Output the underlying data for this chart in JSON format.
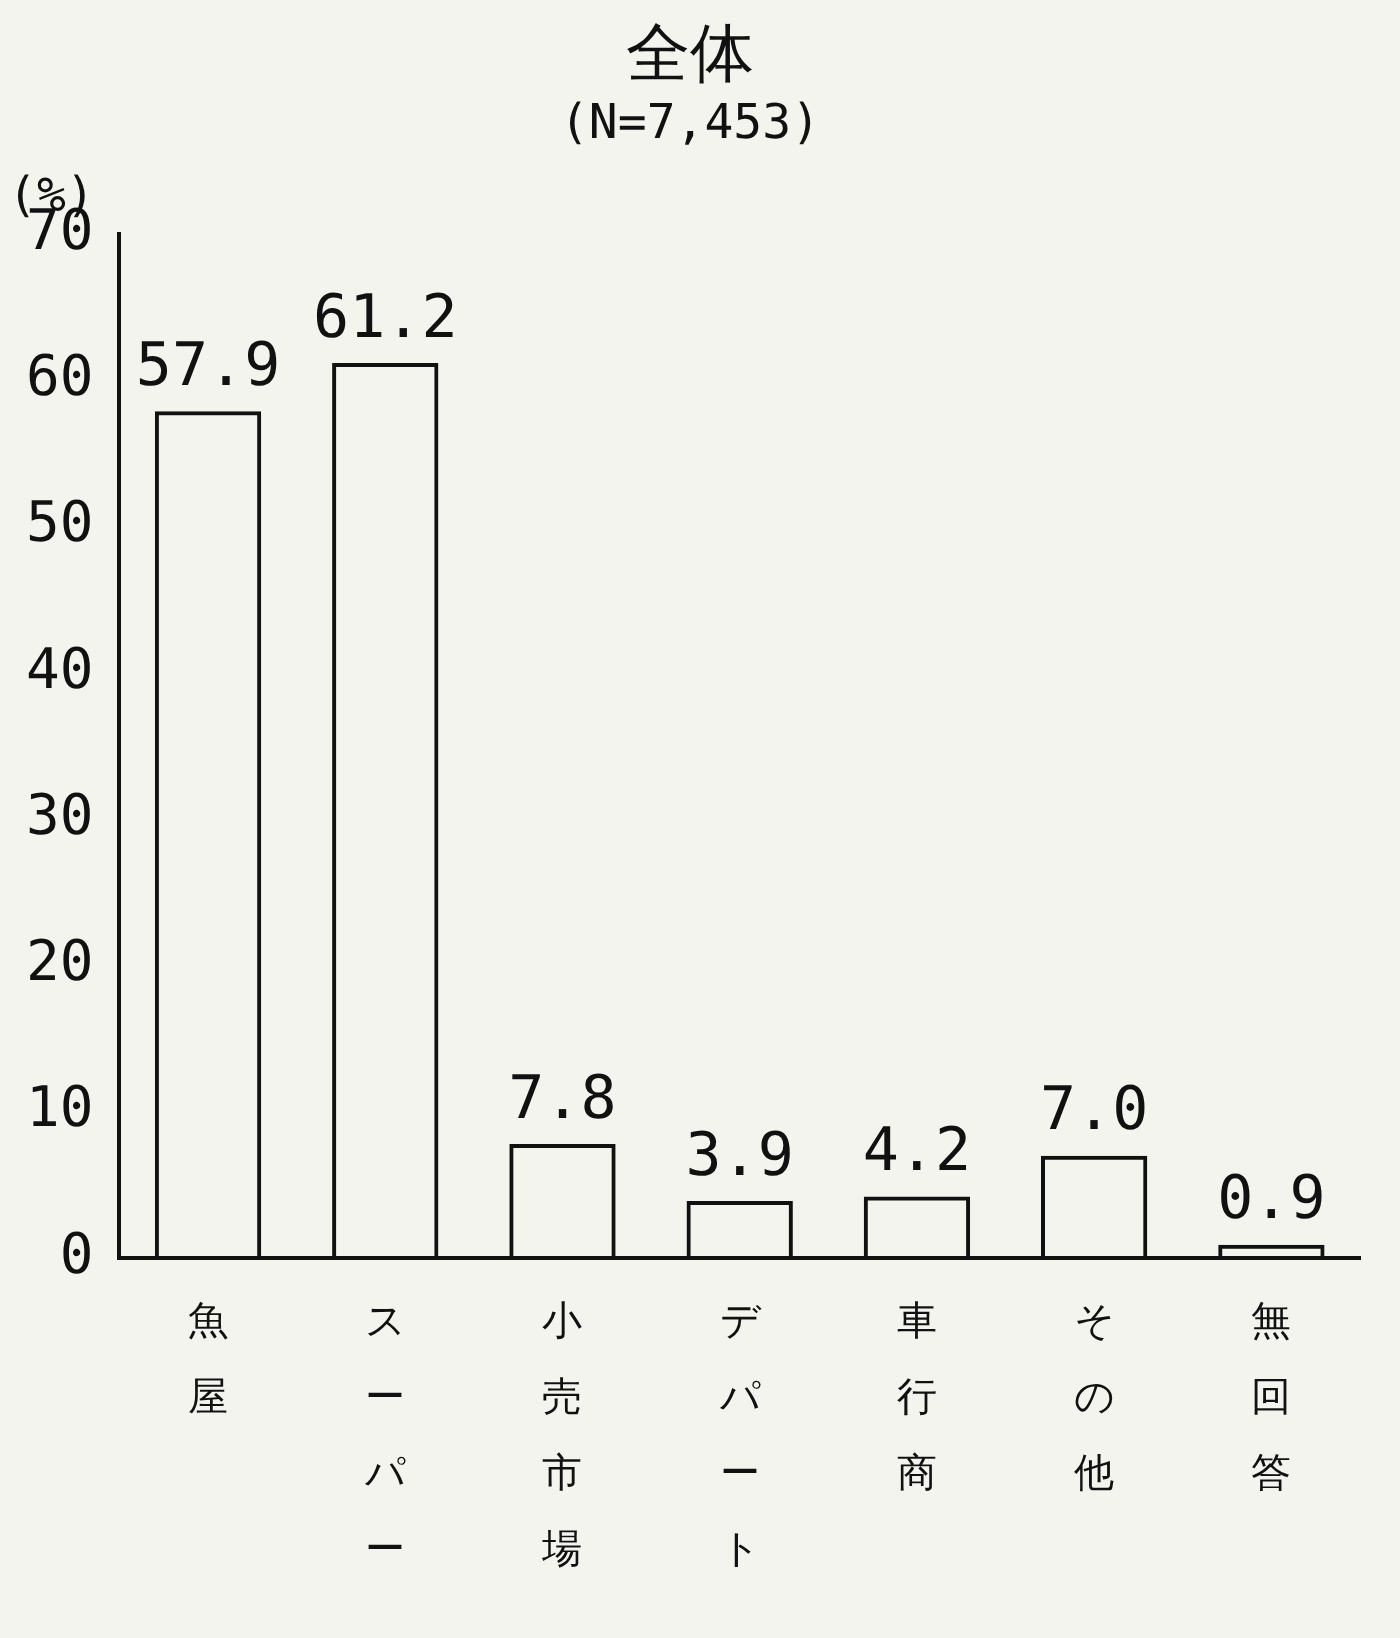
{
  "chart_data": {
    "type": "bar",
    "title": "全体",
    "subtitle": "(N=7,453)",
    "ylabel": "(%)",
    "categories": [
      "魚屋",
      "スーパー",
      "小売市場",
      "デパート",
      "車行商",
      "その他",
      "無回答"
    ],
    "values": [
      57.9,
      61.2,
      7.8,
      3.9,
      4.2,
      7.0,
      0.9
    ],
    "value_labels": [
      "57.9",
      "61.2",
      "7.8",
      "3.9",
      "4.2",
      "7.0",
      "0.9"
    ],
    "color": "#111111",
    "ylim": [
      0,
      70
    ],
    "yticks": [
      0,
      10,
      20,
      30,
      40,
      50,
      60,
      70
    ],
    "grid": false,
    "legend": false
  }
}
